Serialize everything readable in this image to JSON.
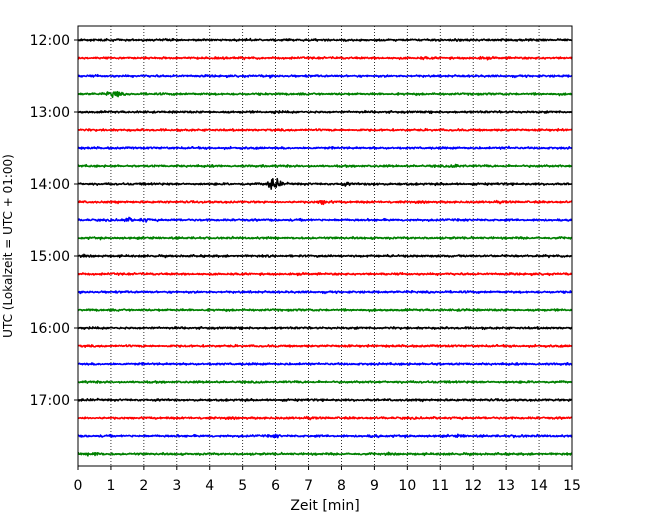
{
  "chart_data": {
    "type": "line",
    "description_kind": "helicorder",
    "xlabel": "Zeit  [min]",
    "ylabel": "UTC (Lokalzeit = UTC + 01:00)",
    "xlim": [
      0,
      15
    ],
    "x_ticks": [
      "0",
      "1",
      "2",
      "3",
      "4",
      "5",
      "6",
      "7",
      "8",
      "9",
      "10",
      "11",
      "12",
      "13",
      "14",
      "15"
    ],
    "y_tick_labels": [
      "12:00",
      "13:00",
      "14:00",
      "15:00",
      "16:00",
      "17:00"
    ],
    "row_interval_minutes": 15,
    "first_row": "12:00",
    "last_row": "17:45",
    "row_colors": [
      "#000000",
      "#ff0000",
      "#0000ff",
      "#008000"
    ],
    "grid": "vertical dotted",
    "rows": [
      {
        "start": "12:00",
        "color": "#000000",
        "events": []
      },
      {
        "start": "12:15",
        "color": "#ff0000",
        "events": [
          {
            "t": 10.5,
            "amp": 1.3
          },
          {
            "t": 12.3,
            "amp": 1.3
          }
        ]
      },
      {
        "start": "12:30",
        "color": "#0000ff",
        "events": [
          {
            "t": 5.8,
            "amp": 1.2
          }
        ]
      },
      {
        "start": "12:45",
        "color": "#008000",
        "events": [
          {
            "t": 1.1,
            "amp": 2.6
          }
        ]
      },
      {
        "start": "13:00",
        "color": "#000000",
        "events": [
          {
            "t": 6.0,
            "amp": 1.2
          }
        ]
      },
      {
        "start": "13:15",
        "color": "#ff0000",
        "events": []
      },
      {
        "start": "13:30",
        "color": "#0000ff",
        "events": [
          {
            "t": 13.0,
            "amp": 1.3
          }
        ]
      },
      {
        "start": "13:45",
        "color": "#008000",
        "events": [
          {
            "t": 11.5,
            "amp": 1.7
          }
        ]
      },
      {
        "start": "14:00",
        "color": "#000000",
        "events": [
          {
            "t": 5.95,
            "amp": 3.6
          },
          {
            "t": 8.1,
            "amp": 1.5
          },
          {
            "t": 9.0,
            "amp": 1.4
          }
        ]
      },
      {
        "start": "14:15",
        "color": "#ff0000",
        "events": [
          {
            "t": 7.45,
            "amp": 2.0
          }
        ]
      },
      {
        "start": "14:30",
        "color": "#0000ff",
        "events": [
          {
            "t": 1.5,
            "amp": 1.8
          },
          {
            "t": 2.0,
            "amp": 1.6
          }
        ]
      },
      {
        "start": "14:45",
        "color": "#008000",
        "events": []
      },
      {
        "start": "15:00",
        "color": "#000000",
        "events": []
      },
      {
        "start": "15:15",
        "color": "#ff0000",
        "events": []
      },
      {
        "start": "15:30",
        "color": "#0000ff",
        "events": []
      },
      {
        "start": "15:45",
        "color": "#008000",
        "events": [
          {
            "t": 11.7,
            "amp": 1.3
          }
        ]
      },
      {
        "start": "16:00",
        "color": "#000000",
        "events": []
      },
      {
        "start": "16:15",
        "color": "#ff0000",
        "events": []
      },
      {
        "start": "16:30",
        "color": "#0000ff",
        "events": [
          {
            "t": 10.8,
            "amp": 1.3
          }
        ]
      },
      {
        "start": "16:45",
        "color": "#008000",
        "events": []
      },
      {
        "start": "17:00",
        "color": "#000000",
        "events": []
      },
      {
        "start": "17:15",
        "color": "#ff0000",
        "events": []
      },
      {
        "start": "17:30",
        "color": "#0000ff",
        "events": [
          {
            "t": 6.0,
            "amp": 1.5
          },
          {
            "t": 9.0,
            "amp": 1.4
          },
          {
            "t": 11.6,
            "amp": 1.4
          },
          {
            "t": 13.4,
            "amp": 1.4
          }
        ]
      },
      {
        "start": "17:45",
        "color": "#008000",
        "events": [
          {
            "t": 0.5,
            "amp": 2.0
          }
        ]
      }
    ]
  }
}
